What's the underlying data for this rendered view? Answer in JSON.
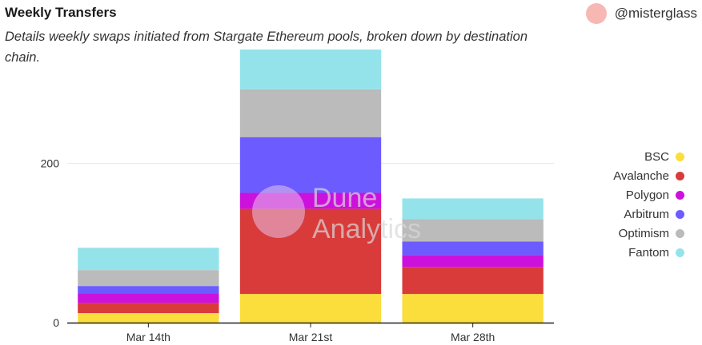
{
  "header": {
    "title": "Weekly Transfers",
    "subtitle": "Details weekly swaps initiated from Stargate Ethereum pools, broken down by destination chain.",
    "author": "@misterglass"
  },
  "watermark": {
    "line1": "Dune",
    "line2": "Analytics"
  },
  "chart_data": {
    "type": "bar",
    "stacked": true,
    "title": "Weekly Transfers",
    "categories": [
      "Mar 14th",
      "Mar 21st",
      "Mar 28th"
    ],
    "ylim": [
      0,
      345
    ],
    "yticks": [
      0,
      200
    ],
    "series": [
      {
        "name": "BSC",
        "color": "#fbdd3c",
        "values": [
          12,
          36,
          36
        ]
      },
      {
        "name": "Avalanche",
        "color": "#d93b3b",
        "values": [
          13,
          107,
          34
        ]
      },
      {
        "name": "Polygon",
        "color": "#cc11dd",
        "values": [
          12,
          20,
          15
        ]
      },
      {
        "name": "Arbitrum",
        "color": "#6c5cff",
        "values": [
          9,
          70,
          17
        ]
      },
      {
        "name": "Optimism",
        "color": "#bbbbbb",
        "values": [
          20,
          60,
          28
        ]
      },
      {
        "name": "Fantom",
        "color": "#95e3ea",
        "values": [
          28,
          50,
          26
        ]
      }
    ],
    "legend": "right",
    "grid": true
  }
}
